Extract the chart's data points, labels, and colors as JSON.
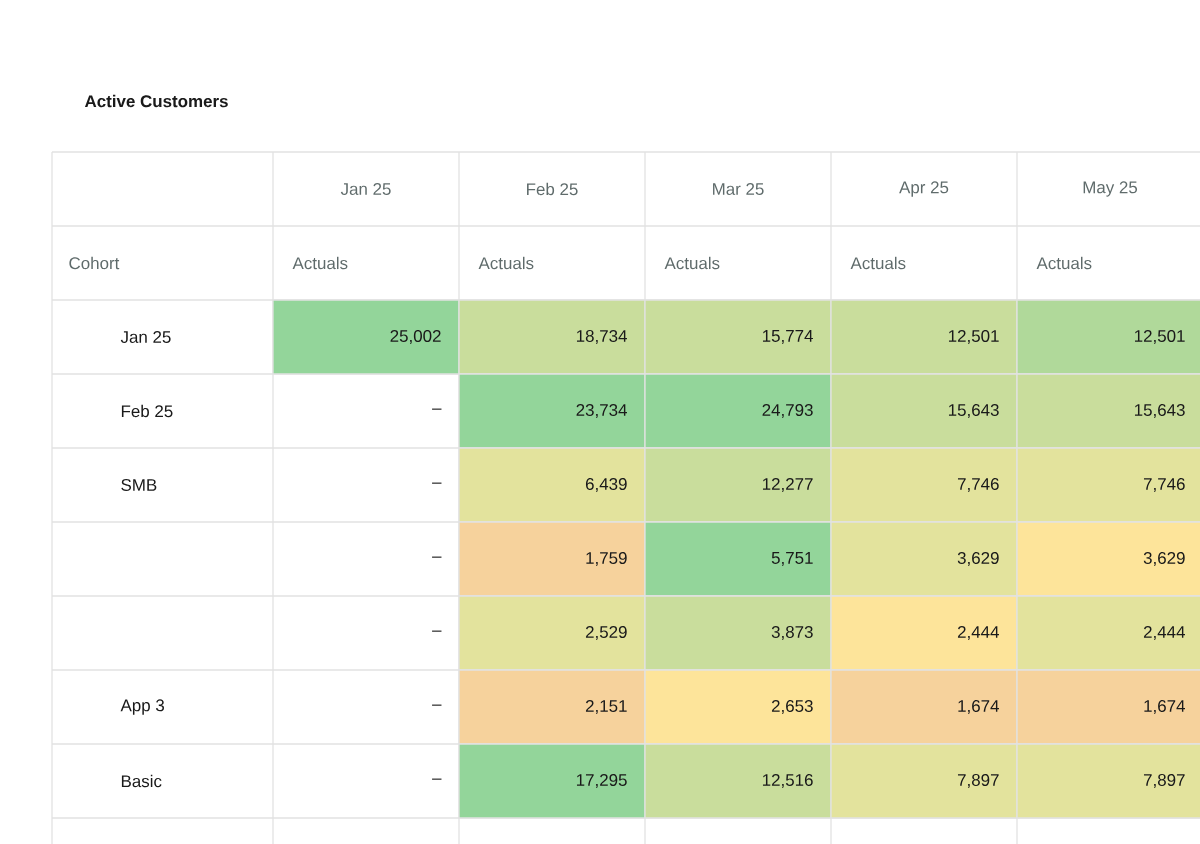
{
  "chart_data": {
    "type": "heatmap",
    "title": "Active Customers",
    "ylabel": "Cohort",
    "xlabel": "Actuals",
    "categories": [
      "Jan 25",
      "Feb 25",
      "Mar 25",
      "Apr 25",
      "May 25"
    ],
    "y_categories": [
      "Jan 25",
      "Feb 25",
      "SMB",
      null,
      null,
      "App 3",
      "Basic"
    ],
    "cells": [
      [
        25002,
        18734,
        15774,
        12501,
        12501
      ],
      [
        null,
        23734,
        24793,
        15643,
        15643
      ],
      [
        null,
        6439,
        12277,
        7746,
        7746
      ],
      [
        null,
        1759,
        5751,
        3629,
        3629
      ],
      [
        null,
        2529,
        3873,
        2444,
        2444
      ],
      [
        null,
        2151,
        2653,
        1674,
        1674
      ],
      [
        null,
        17295,
        12516,
        7897,
        7897
      ]
    ],
    "cell_labels": [
      [
        "25,002",
        "18,734",
        "15,774",
        "12,501",
        "12,501"
      ],
      [
        "–",
        "23,734",
        "24,793",
        "15,643",
        "15,643"
      ],
      [
        "–",
        "6,439",
        "12,277",
        "7,746",
        "7,746"
      ],
      [
        "–",
        "1,759",
        "5,751",
        "3,629",
        "3,629"
      ],
      [
        "–",
        "2,529",
        "3,873",
        "2,444",
        "2,444"
      ],
      [
        "–",
        "2,151",
        "2,653",
        "1,674",
        "1,674"
      ],
      [
        "–",
        "17,295",
        "12,516",
        "7,897",
        "7,897"
      ]
    ],
    "colors": [
      [
        "#93d59a",
        "#c9dd9c",
        "#c9dd9c",
        "#c9dd9c",
        "#b0d99a"
      ],
      [
        null,
        "#93d59a",
        "#93d59a",
        "#c9dd9c",
        "#c9dd9c"
      ],
      [
        null,
        "#e3e39d",
        "#c9dd9c",
        "#e3e39d",
        "#e3e39d"
      ],
      [
        null,
        "#f6d29c",
        "#93d59a",
        "#e3e39d",
        "#fde49a"
      ],
      [
        null,
        "#e3e39d",
        "#c9dd9c",
        "#fde49a",
        "#e3e39d"
      ],
      [
        null,
        "#f6d29c",
        "#fde49a",
        "#f6d29c",
        "#f6d29c"
      ],
      [
        null,
        "#93d59a",
        "#c9dd9c",
        "#e3e39d",
        "#e3e39d"
      ]
    ]
  }
}
